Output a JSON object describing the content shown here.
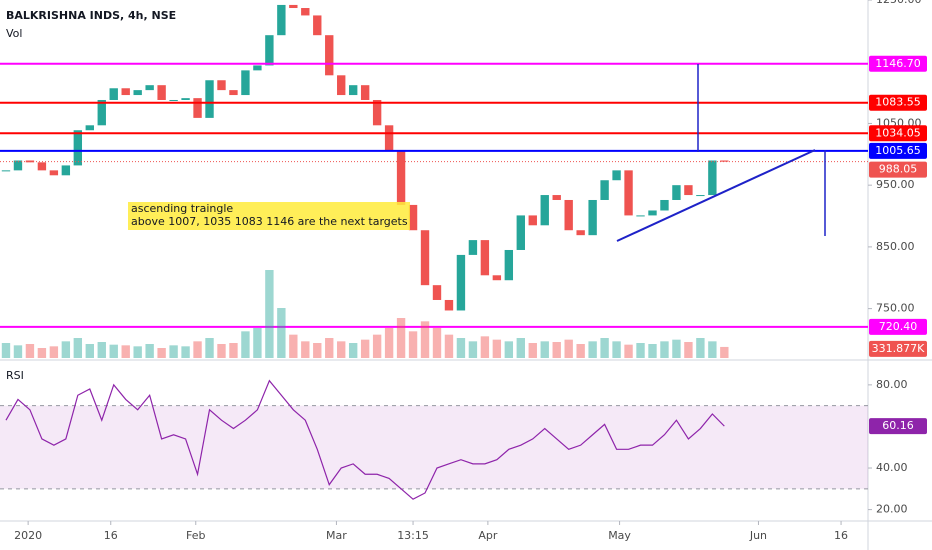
{
  "header": {
    "symbol": "BALKRISHNA INDS, 4h, NSE",
    "volume_label": "Vol",
    "rsi_label": "RSI"
  },
  "chart_data": [
    {
      "type": "candlestick",
      "x": [
        1,
        3,
        5,
        7,
        9,
        11,
        13,
        15,
        17,
        19,
        21,
        23,
        25,
        27,
        29,
        31,
        33,
        35,
        37,
        39,
        41,
        43,
        45,
        47,
        49,
        51,
        53,
        55,
        57,
        59,
        61,
        63,
        65,
        67,
        69,
        71,
        73,
        75,
        77,
        79,
        81,
        83,
        85,
        87,
        89,
        91,
        93,
        95,
        97,
        99,
        101,
        103,
        105,
        107,
        109,
        111,
        113,
        115,
        117,
        119,
        121
      ],
      "values": [
        974,
        990,
        987,
        974,
        966,
        982,
        1039,
        1047,
        1088,
        1107,
        1096,
        1104,
        1112,
        1088,
        1088,
        1091,
        1059,
        1120,
        1104,
        1096,
        1136,
        1144,
        1193,
        1242,
        1237,
        1225,
        1193,
        1128,
        1096,
        1112,
        1088,
        1047,
        1007,
        918,
        877,
        788,
        764,
        747,
        837,
        861,
        804,
        796,
        845,
        901,
        885,
        934,
        926,
        877,
        869,
        926,
        958,
        974,
        901,
        901,
        909,
        926,
        950,
        934,
        934,
        990,
        988.05
      ],
      "up_color": "#26a69a",
      "down_color": "#ef5350",
      "xlim": [
        0,
        145
      ],
      "ylim": [
        670,
        1250
      ],
      "yticks": [
        {
          "value": 1250,
          "label": "1250.00"
        },
        {
          "value": 1050,
          "label": "1050.00"
        },
        {
          "value": 950,
          "label": "950.00"
        },
        {
          "value": 850,
          "label": "850.00"
        },
        {
          "value": 750,
          "label": "750.00"
        }
      ],
      "levels": [
        {
          "value": 1146.7,
          "label": "1146.70",
          "color": "#ff00ff"
        },
        {
          "value": 1083.55,
          "label": "1083.55",
          "color": "#ff0000"
        },
        {
          "value": 1034.05,
          "label": "1034.05",
          "color": "#ff0000"
        },
        {
          "value": 1005.65,
          "label": "1005.65",
          "color": "#0000ff"
        },
        {
          "value": 720.4,
          "label": "720.40",
          "color": "#ff00ff"
        }
      ],
      "annotations": [
        "ascending traingle",
        "above 1007, 1035 1083  1146 are the next targets"
      ]
    },
    {
      "type": "bar",
      "x": [
        1,
        3,
        5,
        7,
        9,
        11,
        13,
        15,
        17,
        19,
        21,
        23,
        25,
        27,
        29,
        31,
        33,
        35,
        37,
        39,
        41,
        43,
        45,
        47,
        49,
        51,
        53,
        55,
        57,
        59,
        61,
        63,
        65,
        67,
        69,
        71,
        73,
        75,
        77,
        79,
        81,
        83,
        85,
        87,
        89,
        91,
        93,
        95,
        97,
        99,
        101,
        103,
        105,
        107,
        109,
        111,
        113,
        115,
        117,
        119,
        121
      ],
      "values": [
        450,
        380,
        420,
        300,
        350,
        500,
        600,
        420,
        480,
        400,
        380,
        350,
        420,
        300,
        380,
        350,
        500,
        600,
        420,
        450,
        800,
        900,
        2640,
        1500,
        700,
        500,
        450,
        600,
        500,
        450,
        550,
        700,
        900,
        1200,
        800,
        1100,
        900,
        700,
        600,
        500,
        650,
        550,
        500,
        600,
        450,
        500,
        480,
        550,
        420,
        500,
        600,
        500,
        400,
        450,
        420,
        500,
        550,
        480,
        600,
        500,
        331.877
      ],
      "last_label": {
        "value": 331.877,
        "label": "331.877K"
      },
      "ylim": [
        0,
        3000
      ]
    },
    {
      "type": "line",
      "color": "#8e24aa",
      "x": [
        1,
        3,
        5,
        7,
        9,
        11,
        13,
        15,
        17,
        19,
        21,
        23,
        25,
        27,
        29,
        31,
        33,
        35,
        37,
        39,
        41,
        43,
        45,
        47,
        49,
        51,
        53,
        55,
        57,
        59,
        61,
        63,
        65,
        67,
        69,
        71,
        73,
        75,
        77,
        79,
        81,
        83,
        85,
        87,
        89,
        91,
        93,
        95,
        97,
        99,
        101,
        103,
        105,
        107,
        109,
        111,
        113,
        115,
        117,
        119,
        121
      ],
      "values": [
        63,
        73,
        68,
        54,
        51,
        54,
        75,
        78,
        63,
        80,
        73,
        68,
        75,
        54,
        56,
        54,
        37,
        68,
        63,
        59,
        63,
        68,
        82,
        75,
        68,
        63,
        49,
        32,
        40,
        42,
        37,
        37,
        35,
        30,
        25,
        28,
        40,
        42,
        44,
        42,
        42,
        44,
        49,
        51,
        54,
        59,
        54,
        49,
        51,
        56,
        61,
        49,
        49,
        51,
        51,
        56,
        63,
        54,
        59,
        66,
        60.16
      ],
      "band": [
        30,
        70
      ],
      "xlim": [
        0,
        145
      ],
      "ylim": [
        15,
        91
      ],
      "yticks": [
        {
          "value": 80,
          "label": "80.00"
        },
        {
          "value": 40,
          "label": "40.00"
        },
        {
          "value": 20,
          "label": "20.00"
        }
      ],
      "xticks": [
        {
          "value": 4.7,
          "label": "2020"
        },
        {
          "value": 18.5,
          "label": "16"
        },
        {
          "value": 32.7,
          "label": "Feb"
        },
        {
          "value": 56.2,
          "label": "Mar"
        },
        {
          "value": 69,
          "label": "13:15"
        },
        {
          "value": 81.5,
          "label": "Apr"
        },
        {
          "value": 103.5,
          "label": "May"
        },
        {
          "value": 126.7,
          "label": "Jun"
        },
        {
          "value": 140.5,
          "label": "16"
        }
      ]
    }
  ]
}
